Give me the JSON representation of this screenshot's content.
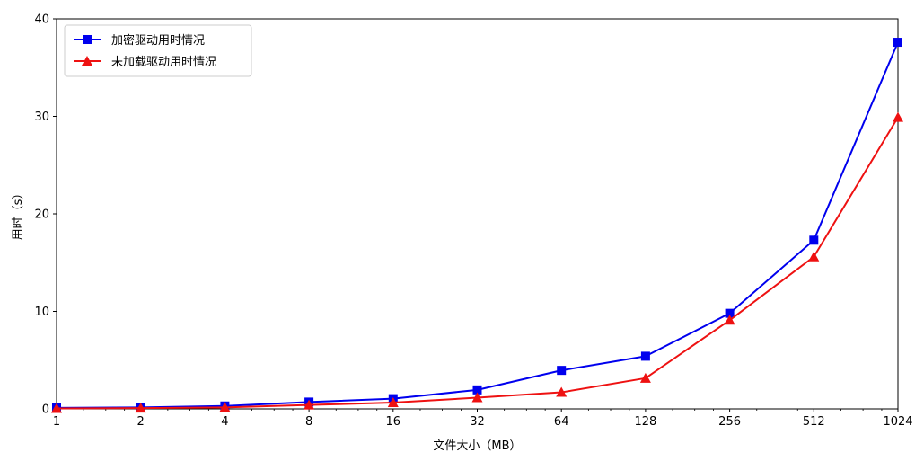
{
  "chart_data": {
    "type": "line",
    "x_scale": "log2",
    "categories": [
      "1",
      "2",
      "4",
      "8",
      "16",
      "32",
      "64",
      "128",
      "256",
      "512",
      "1024"
    ],
    "x": [
      1,
      2,
      4,
      8,
      16,
      32,
      64,
      128,
      256,
      512,
      1024
    ],
    "series": [
      {
        "name": "加密驱动用时情况",
        "color": "#0000ee",
        "marker": "square",
        "values": [
          0.1,
          0.15,
          0.3,
          0.7,
          1.05,
          1.95,
          3.95,
          5.4,
          9.8,
          17.3,
          37.6
        ]
      },
      {
        "name": "未加载驱动用时情况",
        "color": "#ee1111",
        "marker": "triangle",
        "values": [
          0.05,
          0.08,
          0.15,
          0.4,
          0.65,
          1.15,
          1.7,
          3.15,
          9.1,
          15.6,
          29.9
        ]
      }
    ],
    "xlabel": "文件大小（MB）",
    "ylabel": "用时（s）",
    "ylim": [
      0,
      40
    ],
    "yticks": [
      0,
      10,
      20,
      30,
      40
    ],
    "grid": false,
    "legend_position": "top-left"
  }
}
